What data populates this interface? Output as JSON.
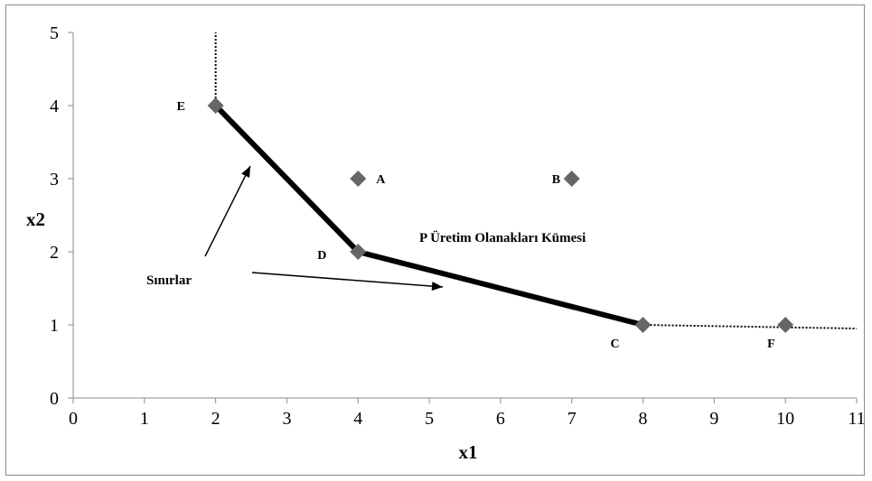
{
  "chart_data": {
    "type": "scatter",
    "xlabel": "x1",
    "ylabel": "x2",
    "xlim": [
      0,
      11
    ],
    "ylim": [
      0,
      5
    ],
    "xticks": [
      "0",
      "1",
      "2",
      "3",
      "4",
      "5",
      "6",
      "7",
      "8",
      "9",
      "10",
      "11"
    ],
    "yticks": [
      "0",
      "1",
      "2",
      "3",
      "4",
      "5"
    ],
    "grid": false,
    "legend": "none",
    "points": [
      {
        "label": "E",
        "x": 2,
        "y": 4
      },
      {
        "label": "A",
        "x": 4,
        "y": 3
      },
      {
        "label": "B",
        "x": 7,
        "y": 3
      },
      {
        "label": "D",
        "x": 4,
        "y": 2
      },
      {
        "label": "C",
        "x": 8,
        "y": 1
      },
      {
        "label": "F",
        "x": 10,
        "y": 1
      }
    ],
    "frontier": [
      [
        2,
        4
      ],
      [
        4,
        2
      ],
      [
        8,
        1
      ]
    ],
    "extensions": [
      {
        "from": [
          2,
          4
        ],
        "to": [
          2,
          5
        ]
      },
      {
        "from": [
          8,
          1
        ],
        "to": [
          11,
          0.95
        ]
      }
    ],
    "annotations": {
      "region_label": "P Üretim Olanakları Kümesi",
      "boundary_label": "Sınırlar"
    },
    "colors": {
      "marker": "#666666",
      "line": "#000000"
    }
  }
}
